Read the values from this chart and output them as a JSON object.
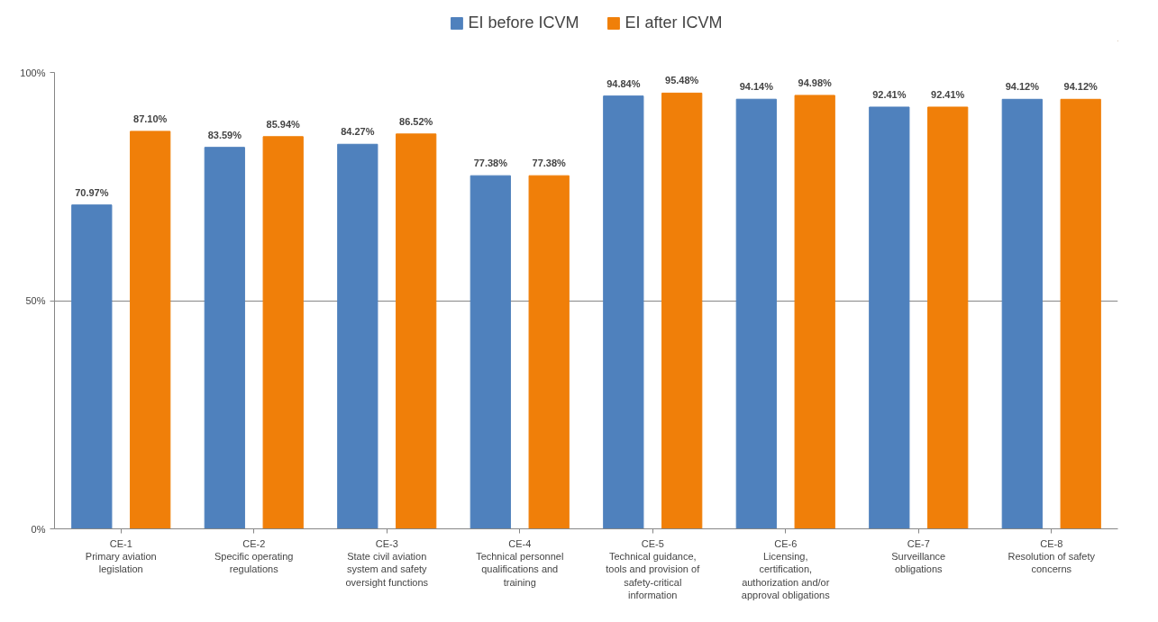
{
  "chart_data": {
    "type": "bar",
    "categories": [
      "CE-1\nPrimary aviation\nlegislation",
      "CE-2\nSpecific operating\nregulations",
      "CE-3\nState civil aviation\nsystem and safety\noversight functions",
      "CE-4\nTechnical personnel\nqualifications and\ntraining",
      "CE-5\nTechnical guidance,\ntools and provision of\nsafety-critical\ninformation",
      "CE-6\nLicensing,\ncertification,\nauthorization and/or\napproval obligations",
      "CE-7\nSurveillance\nobligations",
      "CE-8\nResolution of safety\nconcerns"
    ],
    "series": [
      {
        "name": "EI before ICVM",
        "color": "#4f81bd",
        "values": [
          70.97,
          83.59,
          84.27,
          77.38,
          94.84,
          94.14,
          92.41,
          94.12
        ],
        "value_labels": [
          "70.97%",
          "83.59%",
          "84.27%",
          "77.38%",
          "94.84%",
          "94.14%",
          "92.41%",
          "94.12%"
        ]
      },
      {
        "name": "EI after ICVM",
        "color": "#f07f09",
        "values": [
          87.1,
          85.94,
          86.52,
          77.38,
          95.48,
          94.98,
          92.41,
          94.12
        ],
        "value_labels": [
          "87.10%",
          "85.94%",
          "86.52%",
          "77.38%",
          "95.48%",
          "94.98%",
          "92.41%",
          "94.12%"
        ]
      }
    ],
    "ylim": [
      0,
      100
    ],
    "yticks": [
      {
        "value": 0,
        "label": "0%"
      },
      {
        "value": 50,
        "label": "50%"
      },
      {
        "value": 100,
        "label": "100%"
      }
    ],
    "grid": "y",
    "legend": "top"
  }
}
